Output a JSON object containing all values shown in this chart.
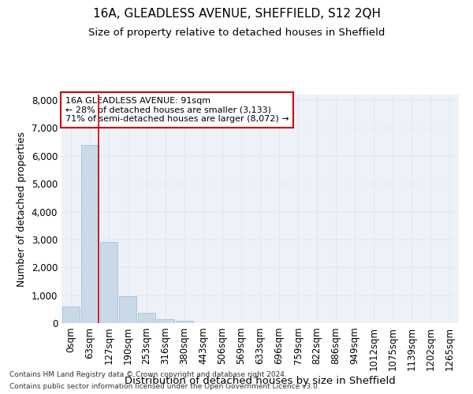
{
  "title": "16A, GLEADLESS AVENUE, SHEFFIELD, S12 2QH",
  "subtitle": "Size of property relative to detached houses in Sheffield",
  "xlabel": "Distribution of detached houses by size in Sheffield",
  "ylabel": "Number of detached properties",
  "footer_line1": "Contains HM Land Registry data © Crown copyright and database right 2024.",
  "footer_line2": "Contains public sector information licensed under the Open Government Licence v3.0.",
  "bar_labels": [
    "0sqm",
    "63sqm",
    "127sqm",
    "190sqm",
    "253sqm",
    "316sqm",
    "380sqm",
    "443sqm",
    "506sqm",
    "569sqm",
    "633sqm",
    "696sqm",
    "759sqm",
    "822sqm",
    "886sqm",
    "949sqm",
    "1012sqm",
    "1075sqm",
    "1139sqm",
    "1202sqm",
    "1265sqm"
  ],
  "bar_values": [
    600,
    6380,
    2900,
    960,
    360,
    150,
    75,
    0,
    0,
    0,
    0,
    0,
    0,
    0,
    0,
    0,
    0,
    0,
    0,
    0,
    0
  ],
  "bar_color": "#c9d9e8",
  "bar_edge_color": "#a0b8cc",
  "grid_color": "#dce8f5",
  "annotation_line1": "16A GLEADLESS AVENUE: 91sqm",
  "annotation_line2": "← 28% of detached houses are smaller (3,133)",
  "annotation_line3": "71% of semi-detached houses are larger (8,072) →",
  "annotation_box_color": "#cc0000",
  "property_line_x": 1.45,
  "ylim": [
    0,
    8200
  ],
  "yticks": [
    0,
    1000,
    2000,
    3000,
    4000,
    5000,
    6000,
    7000,
    8000
  ],
  "bg_color": "#eef2f8",
  "title_fontsize": 11,
  "subtitle_fontsize": 9.5,
  "axis_label_fontsize": 9,
  "tick_fontsize": 8.5,
  "ann_fontsize": 8
}
